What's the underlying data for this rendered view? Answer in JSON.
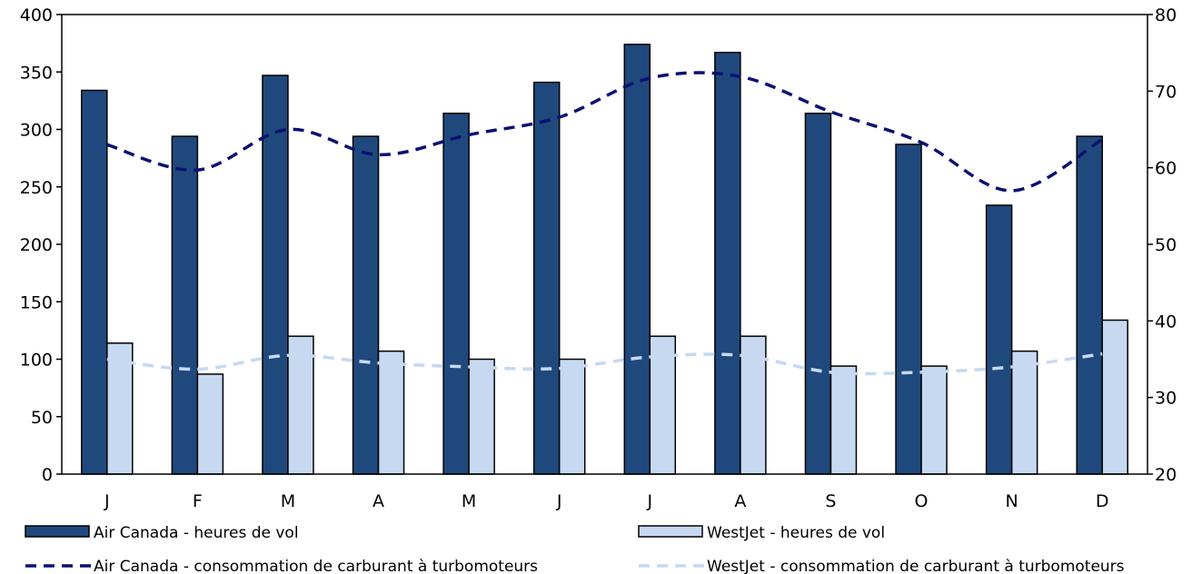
{
  "chart_data": {
    "type": "bar",
    "categories": [
      "J",
      "F",
      "M",
      "A",
      "M",
      "J",
      "J",
      "A",
      "S",
      "O",
      "N",
      "D"
    ],
    "series": [
      {
        "name": "Air Canada - heures de vol",
        "kind": "bar",
        "axis": "left",
        "color": "#1f497d",
        "values": [
          334,
          294,
          347,
          294,
          314,
          341,
          374,
          367,
          314,
          287,
          234,
          294
        ]
      },
      {
        "name": "WestJet - heures de vol",
        "kind": "bar",
        "axis": "left",
        "color": "#c6d9f1",
        "values": [
          114,
          87,
          120,
          107,
          100,
          100,
          120,
          120,
          94,
          94,
          107,
          134
        ]
      },
      {
        "name": "Air Canada - consommation de carburant à turbomoteurs",
        "kind": "line",
        "style": "dashed",
        "axis": "right",
        "color": "#0a1172",
        "values": [
          63,
          59.7,
          65,
          61.7,
          64.3,
          66.6,
          71.7,
          71.9,
          67.3,
          63.3,
          57,
          63.7
        ]
      },
      {
        "name": "WestJet - consommation de carburant à turbomoteurs",
        "kind": "line",
        "style": "dashed",
        "axis": "right",
        "color": "#c6d9f1",
        "values": [
          35,
          33.7,
          35.5,
          34.5,
          34,
          33.8,
          35.3,
          35.5,
          33.3,
          33.3,
          34,
          35.7
        ]
      }
    ],
    "y_left": {
      "min": 0,
      "max": 400,
      "ticks": [
        0,
        50,
        100,
        150,
        200,
        250,
        300,
        350,
        400
      ]
    },
    "y_right": {
      "min": 20,
      "max": 80,
      "ticks": [
        20,
        30,
        40,
        50,
        60,
        70,
        80
      ]
    },
    "grid": false,
    "legend_position": "bottom"
  }
}
